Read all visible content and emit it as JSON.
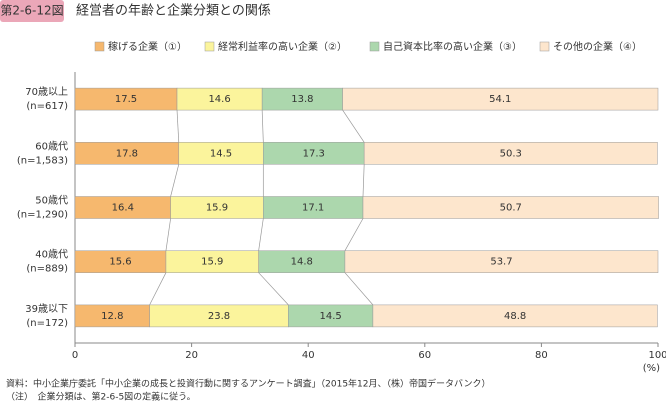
{
  "chart_data": {
    "type": "stacked_bar_horizontal",
    "figure_number": "第2-6-12図",
    "title": "経営者の年齢と企業分類との関係",
    "categories": [
      "70歳以上",
      "60歳代",
      "50歳代",
      "40歳代",
      "39歳以下"
    ],
    "category_notes": [
      "(n=617)",
      "(n=1,583)",
      "(n=1,290)",
      "(n=889)",
      "(n=172)"
    ],
    "series": [
      {
        "name": "稼げる企業（①）",
        "color": "#f6b86e",
        "values": [
          17.5,
          17.8,
          16.4,
          15.6,
          12.8
        ]
      },
      {
        "name": "経常利益率の高い企業（②）",
        "color": "#fbf49c",
        "values": [
          14.6,
          14.5,
          15.9,
          15.9,
          23.8
        ]
      },
      {
        "name": "自己資本比率の高い企業（③）",
        "color": "#acd7ad",
        "values": [
          13.8,
          17.3,
          17.1,
          14.8,
          14.5
        ]
      },
      {
        "name": "その他の企業（④）",
        "color": "#fde6cd",
        "values": [
          54.1,
          50.3,
          50.7,
          53.7,
          48.8
        ]
      }
    ],
    "xlim": [
      0,
      100
    ],
    "xticks": [
      0,
      20,
      40,
      60,
      80,
      100
    ],
    "xlabel": "(%)",
    "notes": [
      "資料：中小企業庁委託「中小企業の成長と投資行動に関するアンケート調査」（2015年12月、（株）帝国データバンク）",
      "（注）　企業分類は、第2-6-5図の定義に従う。"
    ]
  }
}
